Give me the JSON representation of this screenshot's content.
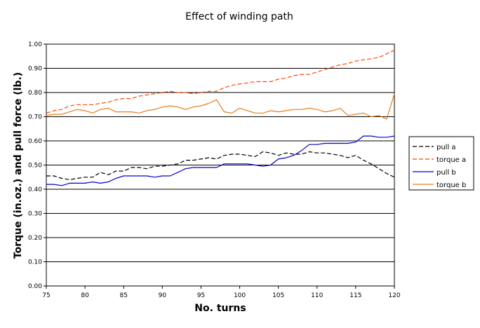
{
  "chart_data": {
    "type": "line",
    "title": "Effect of winding path",
    "xlabel": "No. turns",
    "ylabel": "Torque (in.oz.) and pull force (lb.)",
    "xlim": [
      75,
      120
    ],
    "ylim": [
      0,
      1
    ],
    "x_ticks": [
      75,
      80,
      85,
      90,
      95,
      100,
      105,
      110,
      115,
      120
    ],
    "y_ticks": [
      "0.00",
      "0.10",
      "0.20",
      "0.30",
      "0.40",
      "0.50",
      "0.60",
      "0.70",
      "0.80",
      "0.90",
      "1.00"
    ],
    "grid": "horizontal",
    "legend_position": "right",
    "x": [
      75,
      76,
      77,
      78,
      79,
      80,
      81,
      82,
      83,
      84,
      85,
      86,
      87,
      88,
      89,
      90,
      91,
      92,
      93,
      94,
      95,
      96,
      97,
      98,
      99,
      100,
      101,
      102,
      103,
      104,
      105,
      106,
      107,
      108,
      109,
      110,
      111,
      112,
      113,
      114,
      115,
      116,
      117,
      118,
      119,
      120
    ],
    "series": [
      {
        "name": "pull a",
        "color": "#000000",
        "dash": "dashed",
        "values": [
          0.455,
          0.455,
          0.445,
          0.44,
          0.445,
          0.45,
          0.45,
          0.47,
          0.46,
          0.475,
          0.475,
          0.49,
          0.49,
          0.485,
          0.495,
          0.495,
          0.5,
          0.505,
          0.52,
          0.52,
          0.525,
          0.53,
          0.525,
          0.54,
          0.545,
          0.545,
          0.54,
          0.535,
          0.555,
          0.55,
          0.54,
          0.55,
          0.545,
          0.545,
          0.555,
          0.55,
          0.55,
          0.545,
          0.54,
          0.53,
          0.54,
          0.52,
          0.505,
          0.485,
          0.465,
          0.45
        ]
      },
      {
        "name": "torque a",
        "color": "#ff4500",
        "dash": "dashed",
        "values": [
          0.715,
          0.725,
          0.73,
          0.745,
          0.75,
          0.75,
          0.75,
          0.755,
          0.76,
          0.77,
          0.775,
          0.775,
          0.785,
          0.79,
          0.795,
          0.8,
          0.805,
          0.8,
          0.8,
          0.795,
          0.8,
          0.805,
          0.805,
          0.82,
          0.83,
          0.835,
          0.84,
          0.845,
          0.845,
          0.845,
          0.855,
          0.86,
          0.87,
          0.875,
          0.875,
          0.885,
          0.895,
          0.905,
          0.915,
          0.92,
          0.93,
          0.935,
          0.94,
          0.945,
          0.96,
          0.975
        ]
      },
      {
        "name": "pull b",
        "color": "#0000cc",
        "dash": "solid",
        "values": [
          0.42,
          0.42,
          0.415,
          0.425,
          0.425,
          0.425,
          0.43,
          0.425,
          0.43,
          0.445,
          0.455,
          0.455,
          0.455,
          0.455,
          0.45,
          0.455,
          0.455,
          0.47,
          0.485,
          0.49,
          0.49,
          0.49,
          0.49,
          0.505,
          0.505,
          0.505,
          0.505,
          0.5,
          0.495,
          0.5,
          0.525,
          0.53,
          0.54,
          0.56,
          0.585,
          0.585,
          0.59,
          0.59,
          0.59,
          0.59,
          0.595,
          0.62,
          0.62,
          0.615,
          0.615,
          0.62
        ]
      },
      {
        "name": "torque b",
        "color": "#e87d1e",
        "dash": "solid",
        "values": [
          0.705,
          0.71,
          0.71,
          0.72,
          0.73,
          0.725,
          0.715,
          0.73,
          0.735,
          0.72,
          0.72,
          0.72,
          0.715,
          0.725,
          0.73,
          0.74,
          0.745,
          0.74,
          0.73,
          0.74,
          0.745,
          0.755,
          0.77,
          0.72,
          0.715,
          0.735,
          0.725,
          0.715,
          0.715,
          0.725,
          0.72,
          0.725,
          0.73,
          0.73,
          0.735,
          0.73,
          0.72,
          0.725,
          0.735,
          0.705,
          0.71,
          0.715,
          0.7,
          0.705,
          0.69,
          0.795
        ]
      }
    ]
  }
}
